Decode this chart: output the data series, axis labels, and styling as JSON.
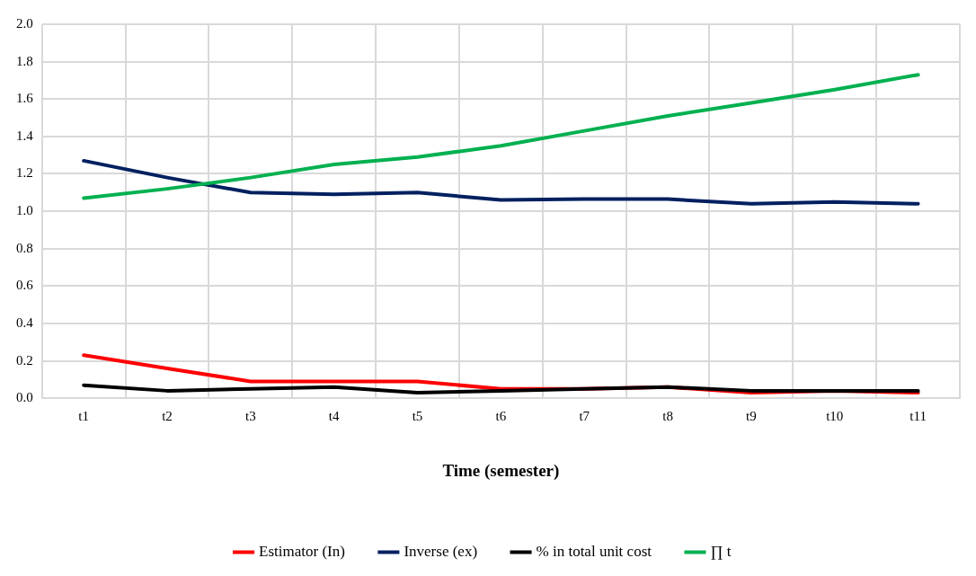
{
  "chart_data": {
    "type": "line",
    "xlabel": "Time (semester)",
    "categories": [
      "t1",
      "t2",
      "t3",
      "t4",
      "t5",
      "t6",
      "t7",
      "t8",
      "t9",
      "t10",
      "t11"
    ],
    "series": [
      {
        "name": "Estimator (In)",
        "color": "#ff0000",
        "values": [
          0.23,
          0.16,
          0.09,
          0.09,
          0.09,
          0.05,
          0.05,
          0.06,
          0.03,
          0.04,
          0.03
        ]
      },
      {
        "name": "Inverse (ex)",
        "color": "#002060",
        "values": [
          1.27,
          1.18,
          1.1,
          1.09,
          1.1,
          1.06,
          1.065,
          1.065,
          1.04,
          1.05,
          1.04
        ]
      },
      {
        "name": "% in total unit cost",
        "color": "#000000",
        "values": [
          0.07,
          0.04,
          0.05,
          0.06,
          0.03,
          0.04,
          0.05,
          0.06,
          0.04,
          0.04,
          0.04
        ]
      },
      {
        "name": "∏ t",
        "color": "#00b050",
        "values": [
          1.07,
          1.12,
          1.18,
          1.25,
          1.29,
          1.35,
          1.43,
          1.51,
          1.58,
          1.65,
          1.73
        ]
      }
    ],
    "ylim": [
      0,
      2.0
    ],
    "yticks": [
      {
        "value": 0,
        "label": "0.0"
      },
      {
        "value": 0.2,
        "label": "0.2"
      },
      {
        "value": 0.4,
        "label": "0.4"
      },
      {
        "value": 0.6,
        "label": "0.6"
      },
      {
        "value": 0.8,
        "label": "0.8"
      },
      {
        "value": 1.0,
        "label": "1.0"
      },
      {
        "value": 1.2,
        "label": "1.2"
      },
      {
        "value": 1.4,
        "label": "1.4"
      },
      {
        "value": 1.6,
        "label": "1.6"
      },
      {
        "value": 1.8,
        "label": "1.8"
      },
      {
        "value": 2.0,
        "label": "2.0"
      }
    ],
    "grid": true,
    "legend": "bottom",
    "marker": "none",
    "line_style": "solid"
  }
}
